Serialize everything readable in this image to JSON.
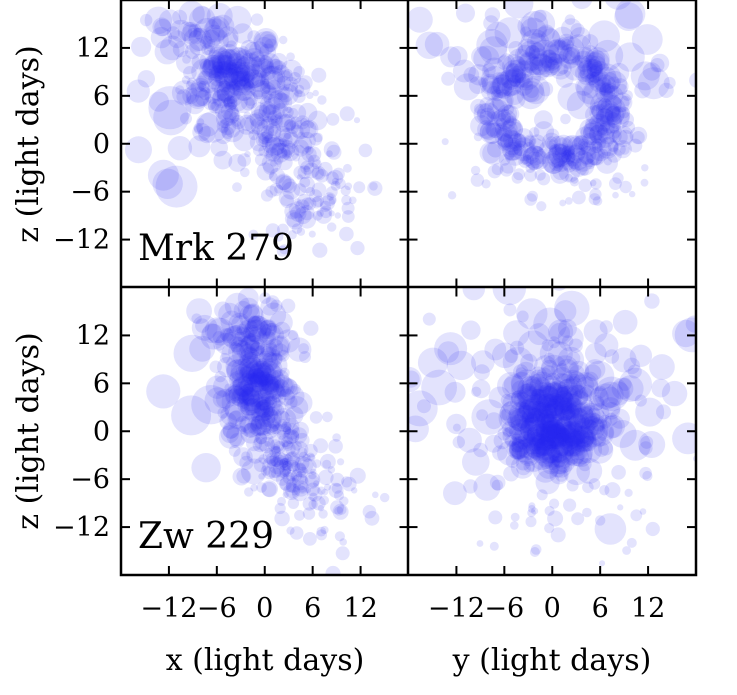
{
  "chart_data": {
    "type": "scatter",
    "xlabel": "x (light days)",
    "ylabel": "z (light days)",
    "y2label": "y (light days)",
    "xlim": [
      -18,
      18
    ],
    "ylim": [
      -18,
      18
    ],
    "ticks": [
      -12,
      -6,
      0,
      6,
      12
    ],
    "tick_labels": [
      "−12",
      "−6",
      "0",
      "6",
      "12"
    ],
    "point_color": "#2a2aee",
    "panels": [
      {
        "name": "Mrk 279",
        "label": "Mrk 279",
        "projection": "x-z",
        "groups": [
          {
            "cx": -4,
            "cz": 8,
            "sx": 3.5,
            "sz": 3.0,
            "n": 220,
            "rmin": 4,
            "rmax": 13
          },
          {
            "cx": 2,
            "cz": 2,
            "sx": 3.0,
            "sz": 4.5,
            "n": 150,
            "rmin": 3,
            "rmax": 10
          },
          {
            "cx": 6,
            "cz": -6,
            "sx": 3.0,
            "sz": 3.5,
            "n": 90,
            "rmin": 3,
            "rmax": 9
          },
          {
            "cx": -9,
            "cz": 14,
            "sx": 3.0,
            "sz": 1.5,
            "n": 30,
            "rmin": 5,
            "rmax": 14
          },
          {
            "cx": -14,
            "cz": 2,
            "sx": 3.0,
            "sz": 5.0,
            "n": 8,
            "rmin": 12,
            "rmax": 22
          }
        ]
      },
      {
        "name": "Mrk 279",
        "label": "",
        "projection": "y-z",
        "ring": {
          "cx": 0,
          "cz": 4,
          "r": 7.5,
          "w": 1.3,
          "n": 300,
          "rmin": 5,
          "rmax": 12
        },
        "groups": [
          {
            "cx": 0,
            "cz": -3,
            "sx": 6.0,
            "sz": 3.0,
            "n": 70,
            "rmin": 3,
            "rmax": 7
          },
          {
            "cx": 0,
            "cz": 10,
            "sx": 9.0,
            "sz": 4.0,
            "n": 90,
            "rmin": 6,
            "rmax": 16
          }
        ]
      },
      {
        "name": "Zw 229",
        "label": "Zw 229",
        "projection": "x-z",
        "groups": [
          {
            "cx": -1,
            "cz": 6,
            "sx": 2.2,
            "sz": 4.5,
            "n": 260,
            "rmin": 4,
            "rmax": 13
          },
          {
            "cx": 3,
            "cz": -3,
            "sx": 2.0,
            "sz": 2.5,
            "n": 120,
            "rmin": 3,
            "rmax": 9
          },
          {
            "cx": 7,
            "cz": -8,
            "sx": 3.0,
            "sz": 3.0,
            "n": 60,
            "rmin": 3,
            "rmax": 8
          },
          {
            "cx": -3,
            "cz": 13,
            "sx": 3.0,
            "sz": 1.5,
            "n": 40,
            "rmin": 5,
            "rmax": 14
          },
          {
            "cx": -8,
            "cz": 2,
            "sx": 2.5,
            "sz": 4.0,
            "n": 8,
            "rmin": 12,
            "rmax": 20
          }
        ]
      },
      {
        "name": "Zw 229",
        "label": "",
        "projection": "y-z",
        "ring": {
          "cx": 0,
          "cz": 0,
          "r": 3.5,
          "w": 1.8,
          "n": 280,
          "rmin": 5,
          "rmax": 13
        },
        "groups": [
          {
            "cx": 0,
            "cz": 3,
            "sx": 4.5,
            "sz": 4.5,
            "n": 160,
            "rmin": 5,
            "rmax": 14
          },
          {
            "cx": 0,
            "cz": 6,
            "sx": 12.0,
            "sz": 7.0,
            "n": 110,
            "rmin": 6,
            "rmax": 18
          },
          {
            "cx": 0,
            "cz": -8,
            "sx": 7.0,
            "sz": 4.0,
            "n": 50,
            "rmin": 3,
            "rmax": 8
          }
        ]
      }
    ]
  }
}
